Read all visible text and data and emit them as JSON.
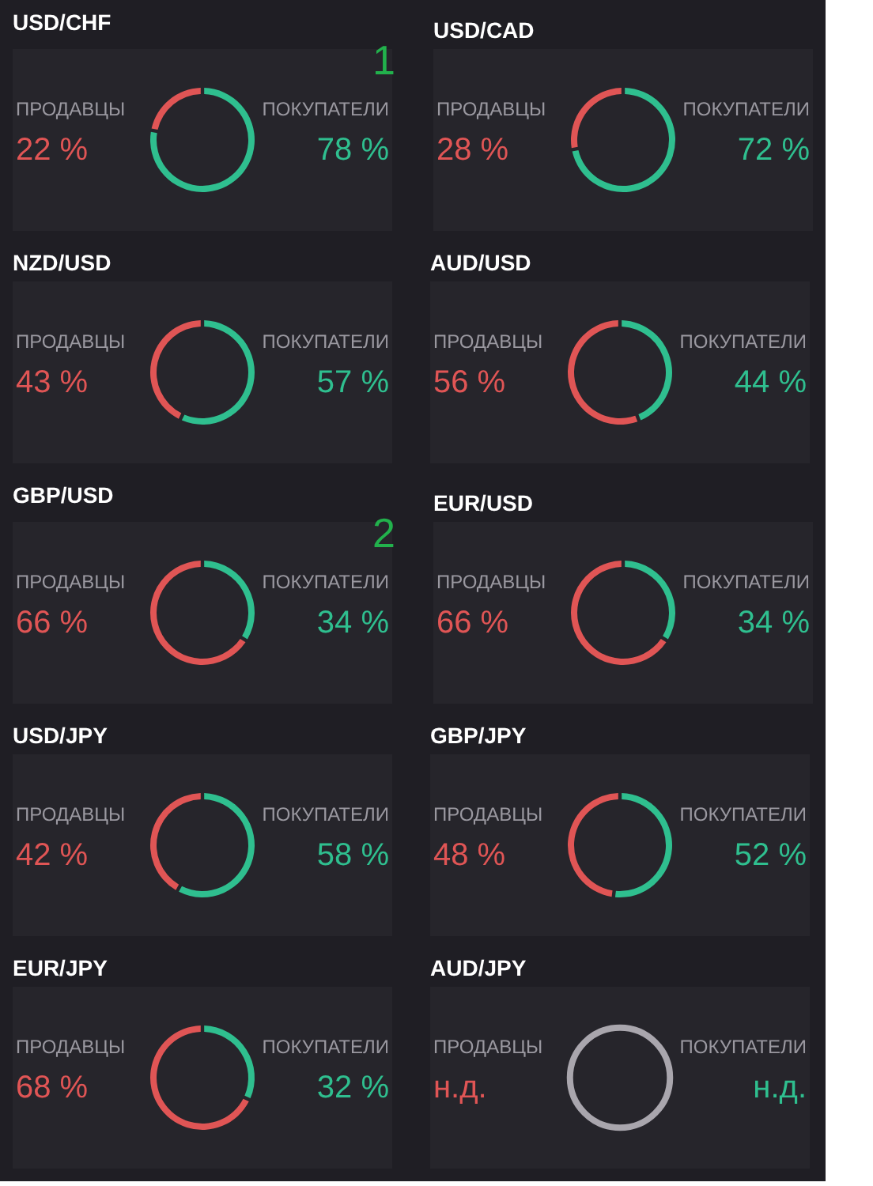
{
  "chart_data": [
    {
      "type": "donut",
      "title": "USD/CHF",
      "categories": [
        "ПРОДАВЦЫ",
        "ПОКУПАТЕЛИ"
      ],
      "values": [
        22,
        78
      ],
      "value_labels": [
        "22 %",
        "78 %"
      ],
      "colors": [
        "#e05555",
        "#2fbf8f"
      ],
      "annotations": [
        "1"
      ]
    },
    {
      "type": "donut",
      "title": "USD/CAD",
      "categories": [
        "ПРОДАВЦЫ",
        "ПОКУПАТЕЛИ"
      ],
      "values": [
        28,
        72
      ],
      "value_labels": [
        "28 %",
        "72 %"
      ],
      "colors": [
        "#e05555",
        "#2fbf8f"
      ]
    },
    {
      "type": "donut",
      "title": "NZD/USD",
      "categories": [
        "ПРОДАВЦЫ",
        "ПОКУПАТЕЛИ"
      ],
      "values": [
        43,
        57
      ],
      "value_labels": [
        "43 %",
        "57 %"
      ],
      "colors": [
        "#e05555",
        "#2fbf8f"
      ]
    },
    {
      "type": "donut",
      "title": "AUD/USD",
      "categories": [
        "ПРОДАВЦЫ",
        "ПОКУПАТЕЛИ"
      ],
      "values": [
        56,
        44
      ],
      "value_labels": [
        "56 %",
        "44 %"
      ],
      "colors": [
        "#e05555",
        "#2fbf8f"
      ]
    },
    {
      "type": "donut",
      "title": "GBP/USD",
      "categories": [
        "ПРОДАВЦЫ",
        "ПОКУПАТЕЛИ"
      ],
      "values": [
        66,
        34
      ],
      "value_labels": [
        "66 %",
        "34 %"
      ],
      "colors": [
        "#e05555",
        "#2fbf8f"
      ],
      "annotations": [
        "2"
      ]
    },
    {
      "type": "donut",
      "title": "EUR/USD",
      "categories": [
        "ПРОДАВЦЫ",
        "ПОКУПАТЕЛИ"
      ],
      "values": [
        66,
        34
      ],
      "value_labels": [
        "66 %",
        "34 %"
      ],
      "colors": [
        "#e05555",
        "#2fbf8f"
      ]
    },
    {
      "type": "donut",
      "title": "USD/JPY",
      "categories": [
        "ПРОДАВЦЫ",
        "ПОКУПАТЕЛИ"
      ],
      "values": [
        42,
        58
      ],
      "value_labels": [
        "42 %",
        "58 %"
      ],
      "colors": [
        "#e05555",
        "#2fbf8f"
      ]
    },
    {
      "type": "donut",
      "title": "GBP/JPY",
      "categories": [
        "ПРОДАВЦЫ",
        "ПОКУПАТЕЛИ"
      ],
      "values": [
        48,
        52
      ],
      "value_labels": [
        "48 %",
        "52 %"
      ],
      "colors": [
        "#e05555",
        "#2fbf8f"
      ]
    },
    {
      "type": "donut",
      "title": "EUR/JPY",
      "categories": [
        "ПРОДАВЦЫ",
        "ПОКУПАТЕЛИ"
      ],
      "values": [
        68,
        32
      ],
      "value_labels": [
        "68 %",
        "32 %"
      ],
      "colors": [
        "#e05555",
        "#2fbf8f"
      ]
    },
    {
      "type": "other",
      "title": "AUD/JPY",
      "categories": [
        "ПРОДАВЦЫ",
        "ПОКУПАТЕЛИ"
      ],
      "value_labels": [
        "н.д.",
        "н.д."
      ],
      "color": "#a9a6ad"
    }
  ]
}
